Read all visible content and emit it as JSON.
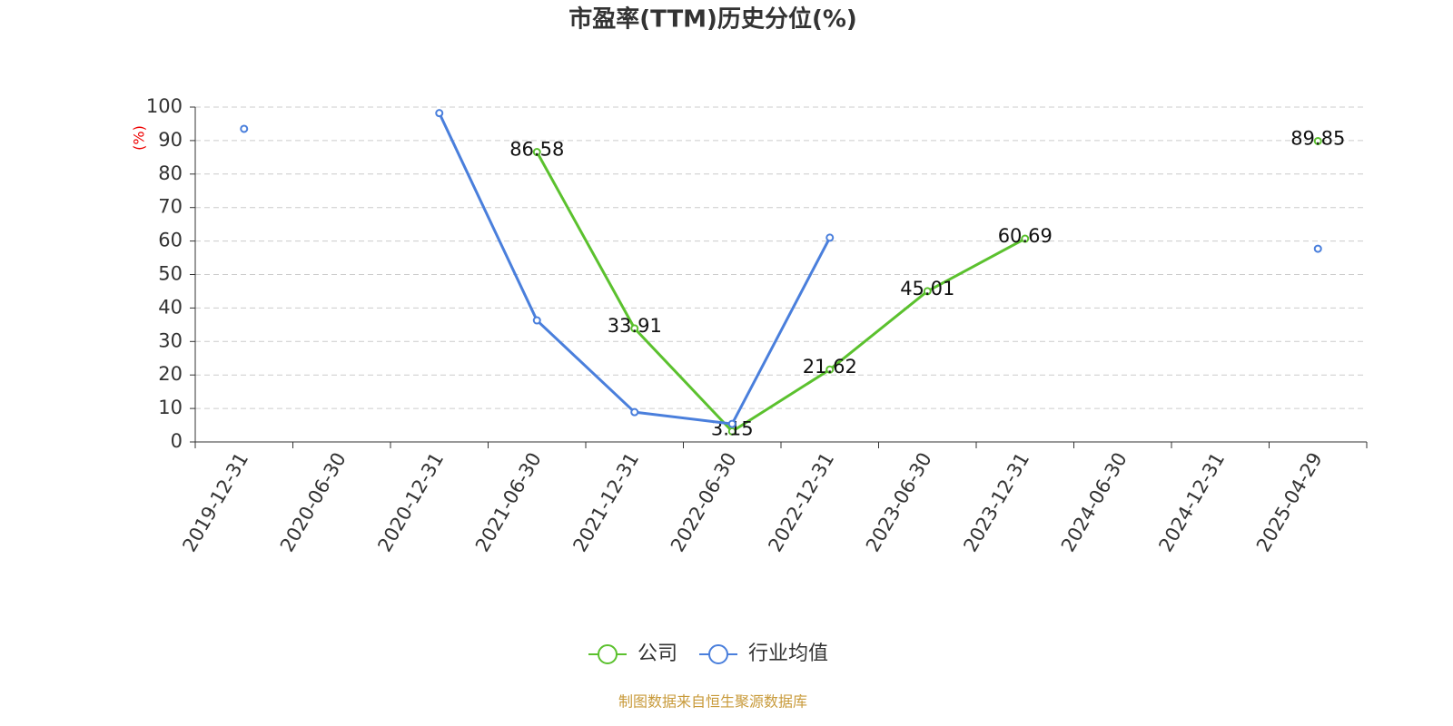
{
  "chart_data": {
    "type": "line",
    "title": "市盈率(TTM)历史分位(%)",
    "y_label": "(%)",
    "source": "制图数据来自恒生聚源数据库",
    "categories": [
      "2019-12-31",
      "2020-06-30",
      "2020-12-31",
      "2021-06-30",
      "2021-12-31",
      "2022-06-30",
      "2022-12-31",
      "2023-06-30",
      "2023-12-31",
      "2024-06-30",
      "2024-12-31",
      "2025-04-29"
    ],
    "series": [
      {
        "name": "公司",
        "color": "#5bc12e",
        "show_labels": true,
        "values": [
          null,
          null,
          null,
          86.58,
          33.91,
          3.15,
          21.62,
          45.01,
          60.69,
          null,
          null,
          89.85
        ]
      },
      {
        "name": "行业均值",
        "color": "#4a7fdc",
        "show_labels": false,
        "values": [
          93.5,
          null,
          98.2,
          36.3,
          8.9,
          5.4,
          61.0,
          null,
          null,
          null,
          null,
          57.7
        ]
      }
    ],
    "ylim": [
      0,
      100
    ],
    "yticks": [
      0,
      10,
      20,
      30,
      40,
      50,
      60,
      70,
      80,
      90,
      100
    ],
    "grid": true,
    "legend": "bottom"
  }
}
